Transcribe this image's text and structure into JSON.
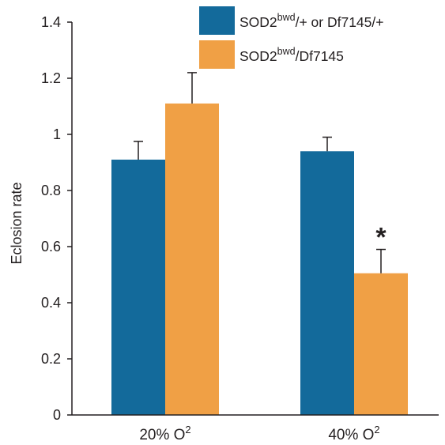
{
  "chart_data": {
    "type": "bar",
    "title": "",
    "ylabel": "Eclosion rate",
    "xlabel": "",
    "ylim": [
      0,
      1.4
    ],
    "yticks": [
      0,
      0.2,
      0.4,
      0.6,
      0.8,
      1,
      1.2,
      1.4
    ],
    "ytick_labels": [
      "0",
      "0.2",
      "0.4",
      "0.6",
      "0.8",
      "1",
      "1.2",
      "1.4"
    ],
    "categories": [
      {
        "main": "20% O",
        "sup": "2"
      },
      {
        "main": "40% O",
        "sup": "2"
      }
    ],
    "series": [
      {
        "name": {
          "pre": "SOD2",
          "sup": "bwd",
          "post": "/+ or Df7145/+"
        },
        "color": "#136a9b",
        "values": [
          0.91,
          0.94
        ],
        "errors": [
          0.065,
          0.05
        ]
      },
      {
        "name": {
          "pre": "SOD2",
          "sup": "bwd",
          "post": "/Df7145"
        },
        "color": "#f0a045",
        "values": [
          1.11,
          0.505
        ],
        "errors": [
          0.11,
          0.085
        ]
      }
    ],
    "annotations": [
      {
        "text": "*",
        "series": 1,
        "category": 1
      }
    ],
    "legend_position": "top-right",
    "grid": false
  }
}
